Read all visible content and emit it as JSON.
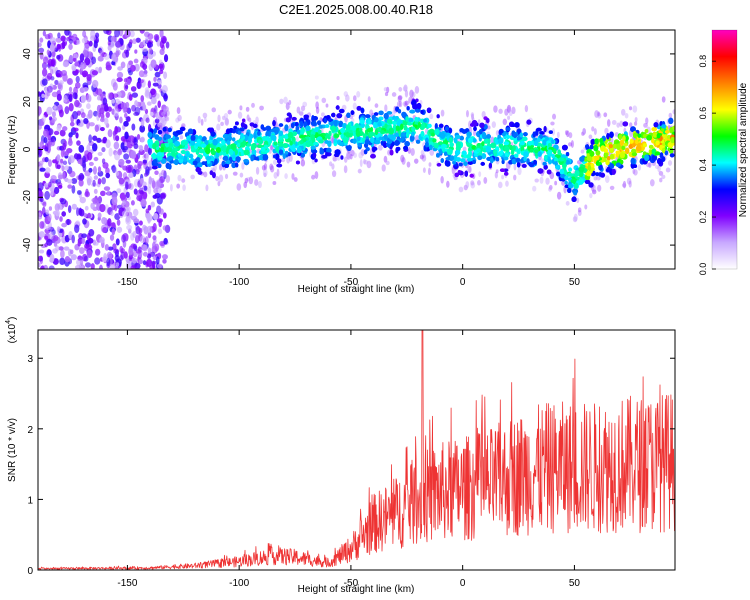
{
  "title": "C2E1.2025.008.00.40.R18",
  "chart_data": [
    {
      "type": "heatmap",
      "xlabel": "Height of straight line (km)",
      "ylabel": "Frequency (Hz)",
      "xlim": [
        -190,
        95
      ],
      "ylim": [
        -50,
        50
      ],
      "xticks": [
        -150,
        -100,
        -50,
        0,
        50
      ],
      "yticks": [
        -40,
        -20,
        0,
        20,
        40
      ],
      "colorbar": {
        "label": "Normalized spectral amplitude",
        "range": [
          0.0,
          0.92
        ],
        "ticks": [
          "0.0",
          "0.2",
          "0.4",
          "0.6",
          "0.8"
        ],
        "colormap": [
          "#ffffff",
          "#c8a8ff",
          "#8000ff",
          "#0000ff",
          "#00ffff",
          "#00ff00",
          "#ffff00",
          "#ff8000",
          "#ff0000",
          "#ff00c0"
        ]
      },
      "ridge_centre_hz": [
        {
          "x": -130,
          "y": 0
        },
        {
          "x": -110,
          "y": 0
        },
        {
          "x": -90,
          "y": 2
        },
        {
          "x": -70,
          "y": 5
        },
        {
          "x": -50,
          "y": 7
        },
        {
          "x": -30,
          "y": 9
        },
        {
          "x": -20,
          "y": 10
        },
        {
          "x": -10,
          "y": 3
        },
        {
          "x": 0,
          "y": 0
        },
        {
          "x": 10,
          "y": 2
        },
        {
          "x": 25,
          "y": 1
        },
        {
          "x": 40,
          "y": 0
        },
        {
          "x": 50,
          "y": -13
        },
        {
          "x": 60,
          "y": -2
        },
        {
          "x": 70,
          "y": 0
        },
        {
          "x": 80,
          "y": 2
        },
        {
          "x": 95,
          "y": 5
        }
      ],
      "noise_region_x": [
        -190,
        -140
      ]
    },
    {
      "type": "line",
      "xlabel": "Height of straight line (km)",
      "ylabel": "SNR (10 * v/v)",
      "multiplier": "(x10",
      "multiplier_exp": "4",
      "xlim": [
        -190,
        95
      ],
      "ylim": [
        0,
        3.4
      ],
      "xticks": [
        -150,
        -100,
        -50,
        0,
        50
      ],
      "yticks": [
        0,
        1,
        2,
        3
      ],
      "series": [
        {
          "color": "#ee3333",
          "envelope": [
            {
              "x": -190,
              "y": 0.02
            },
            {
              "x": -140,
              "y": 0.03
            },
            {
              "x": -120,
              "y": 0.06
            },
            {
              "x": -100,
              "y": 0.12
            },
            {
              "x": -85,
              "y": 0.2
            },
            {
              "x": -75,
              "y": 0.18
            },
            {
              "x": -60,
              "y": 0.1
            },
            {
              "x": -50,
              "y": 0.3
            },
            {
              "x": -40,
              "y": 0.65
            },
            {
              "x": -30,
              "y": 0.8
            },
            {
              "x": -20,
              "y": 1.0
            },
            {
              "x": -10,
              "y": 1.1
            },
            {
              "x": 0,
              "y": 1.15
            },
            {
              "x": 10,
              "y": 1.2
            },
            {
              "x": 20,
              "y": 1.3
            },
            {
              "x": 30,
              "y": 1.4
            },
            {
              "x": 40,
              "y": 1.45
            },
            {
              "x": 50,
              "y": 1.45
            },
            {
              "x": 60,
              "y": 1.45
            },
            {
              "x": 70,
              "y": 1.5
            },
            {
              "x": 80,
              "y": 1.5
            },
            {
              "x": 95,
              "y": 1.55
            }
          ],
          "spike": {
            "x": -18,
            "y": 3.4
          }
        }
      ]
    }
  ]
}
